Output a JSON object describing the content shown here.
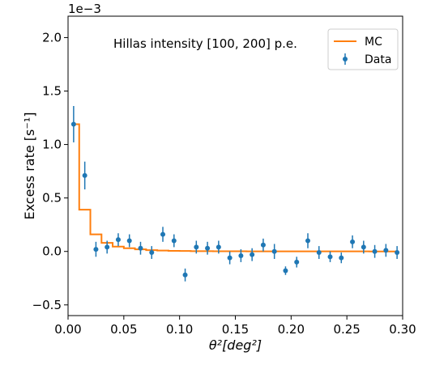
{
  "chart_data": {
    "type": "scatter",
    "title": "Hillas intensity [100, 200] p.e.",
    "xlabel": "θ²[deg²]",
    "ylabel": "Excess rate [s⁻¹]",
    "y_offset_label": "1e−3",
    "xlim": [
      0.0,
      0.3
    ],
    "ylim": [
      -0.6,
      2.2
    ],
    "y_scale_factor": 0.001,
    "grid": false,
    "legend": "top-right",
    "x_ticks": [
      {
        "value": 0.0,
        "label": "0.00"
      },
      {
        "value": 0.05,
        "label": "0.05"
      },
      {
        "value": 0.1,
        "label": "0.10"
      },
      {
        "value": 0.15,
        "label": "0.15"
      },
      {
        "value": 0.2,
        "label": "0.20"
      },
      {
        "value": 0.25,
        "label": "0.25"
      },
      {
        "value": 0.3,
        "label": "0.30"
      }
    ],
    "y_ticks": [
      {
        "value": -0.5,
        "label": "−0.5"
      },
      {
        "value": 0.0,
        "label": "0.0"
      },
      {
        "value": 0.5,
        "label": "0.5"
      },
      {
        "value": 1.0,
        "label": "1.0"
      },
      {
        "value": 1.5,
        "label": "1.5"
      },
      {
        "value": 2.0,
        "label": "2.0"
      }
    ],
    "series": [
      {
        "name": "MC",
        "kind": "step",
        "color": "#ff7f0e",
        "edges": [
          0.005,
          0.01,
          0.02,
          0.03,
          0.04,
          0.05,
          0.06,
          0.07,
          0.08,
          0.09,
          0.1,
          0.11,
          0.12,
          0.13,
          0.14,
          0.15,
          0.16,
          0.17,
          0.18,
          0.19,
          0.2,
          0.21,
          0.22,
          0.23,
          0.24,
          0.25,
          0.26,
          0.27,
          0.28,
          0.29,
          0.295
        ],
        "values": [
          1.19,
          0.39,
          0.16,
          0.08,
          0.045,
          0.03,
          0.02,
          0.012,
          0.008,
          0.005,
          0.004,
          0.003,
          0.003,
          0.002,
          0.002,
          0.002,
          0.001,
          0.001,
          0.001,
          0.001,
          0.001,
          0.001,
          0.001,
          0.001,
          0.001,
          0.001,
          0.001,
          0.0,
          0.0,
          0.0
        ]
      },
      {
        "name": "Data",
        "kind": "errorbar",
        "color": "#1f77b4",
        "x": [
          0.005,
          0.015,
          0.025,
          0.035,
          0.045,
          0.055,
          0.065,
          0.075,
          0.085,
          0.095,
          0.105,
          0.115,
          0.125,
          0.135,
          0.145,
          0.155,
          0.165,
          0.175,
          0.185,
          0.195,
          0.205,
          0.215,
          0.225,
          0.235,
          0.245,
          0.255,
          0.265,
          0.275,
          0.285,
          0.295
        ],
        "y": [
          1.19,
          0.71,
          0.02,
          0.04,
          0.11,
          0.1,
          0.03,
          -0.01,
          0.16,
          0.1,
          -0.22,
          0.04,
          0.03,
          0.04,
          -0.06,
          -0.04,
          -0.03,
          0.06,
          0.0,
          -0.18,
          -0.1,
          0.1,
          -0.01,
          -0.05,
          -0.06,
          0.09,
          0.04,
          0.0,
          0.01,
          -0.01
        ],
        "err": [
          0.17,
          0.13,
          0.07,
          0.06,
          0.06,
          0.06,
          0.06,
          0.06,
          0.07,
          0.06,
          0.06,
          0.06,
          0.06,
          0.06,
          0.06,
          0.06,
          0.06,
          0.06,
          0.07,
          0.04,
          0.05,
          0.07,
          0.06,
          0.05,
          0.05,
          0.06,
          0.06,
          0.06,
          0.06,
          0.06
        ]
      }
    ]
  }
}
